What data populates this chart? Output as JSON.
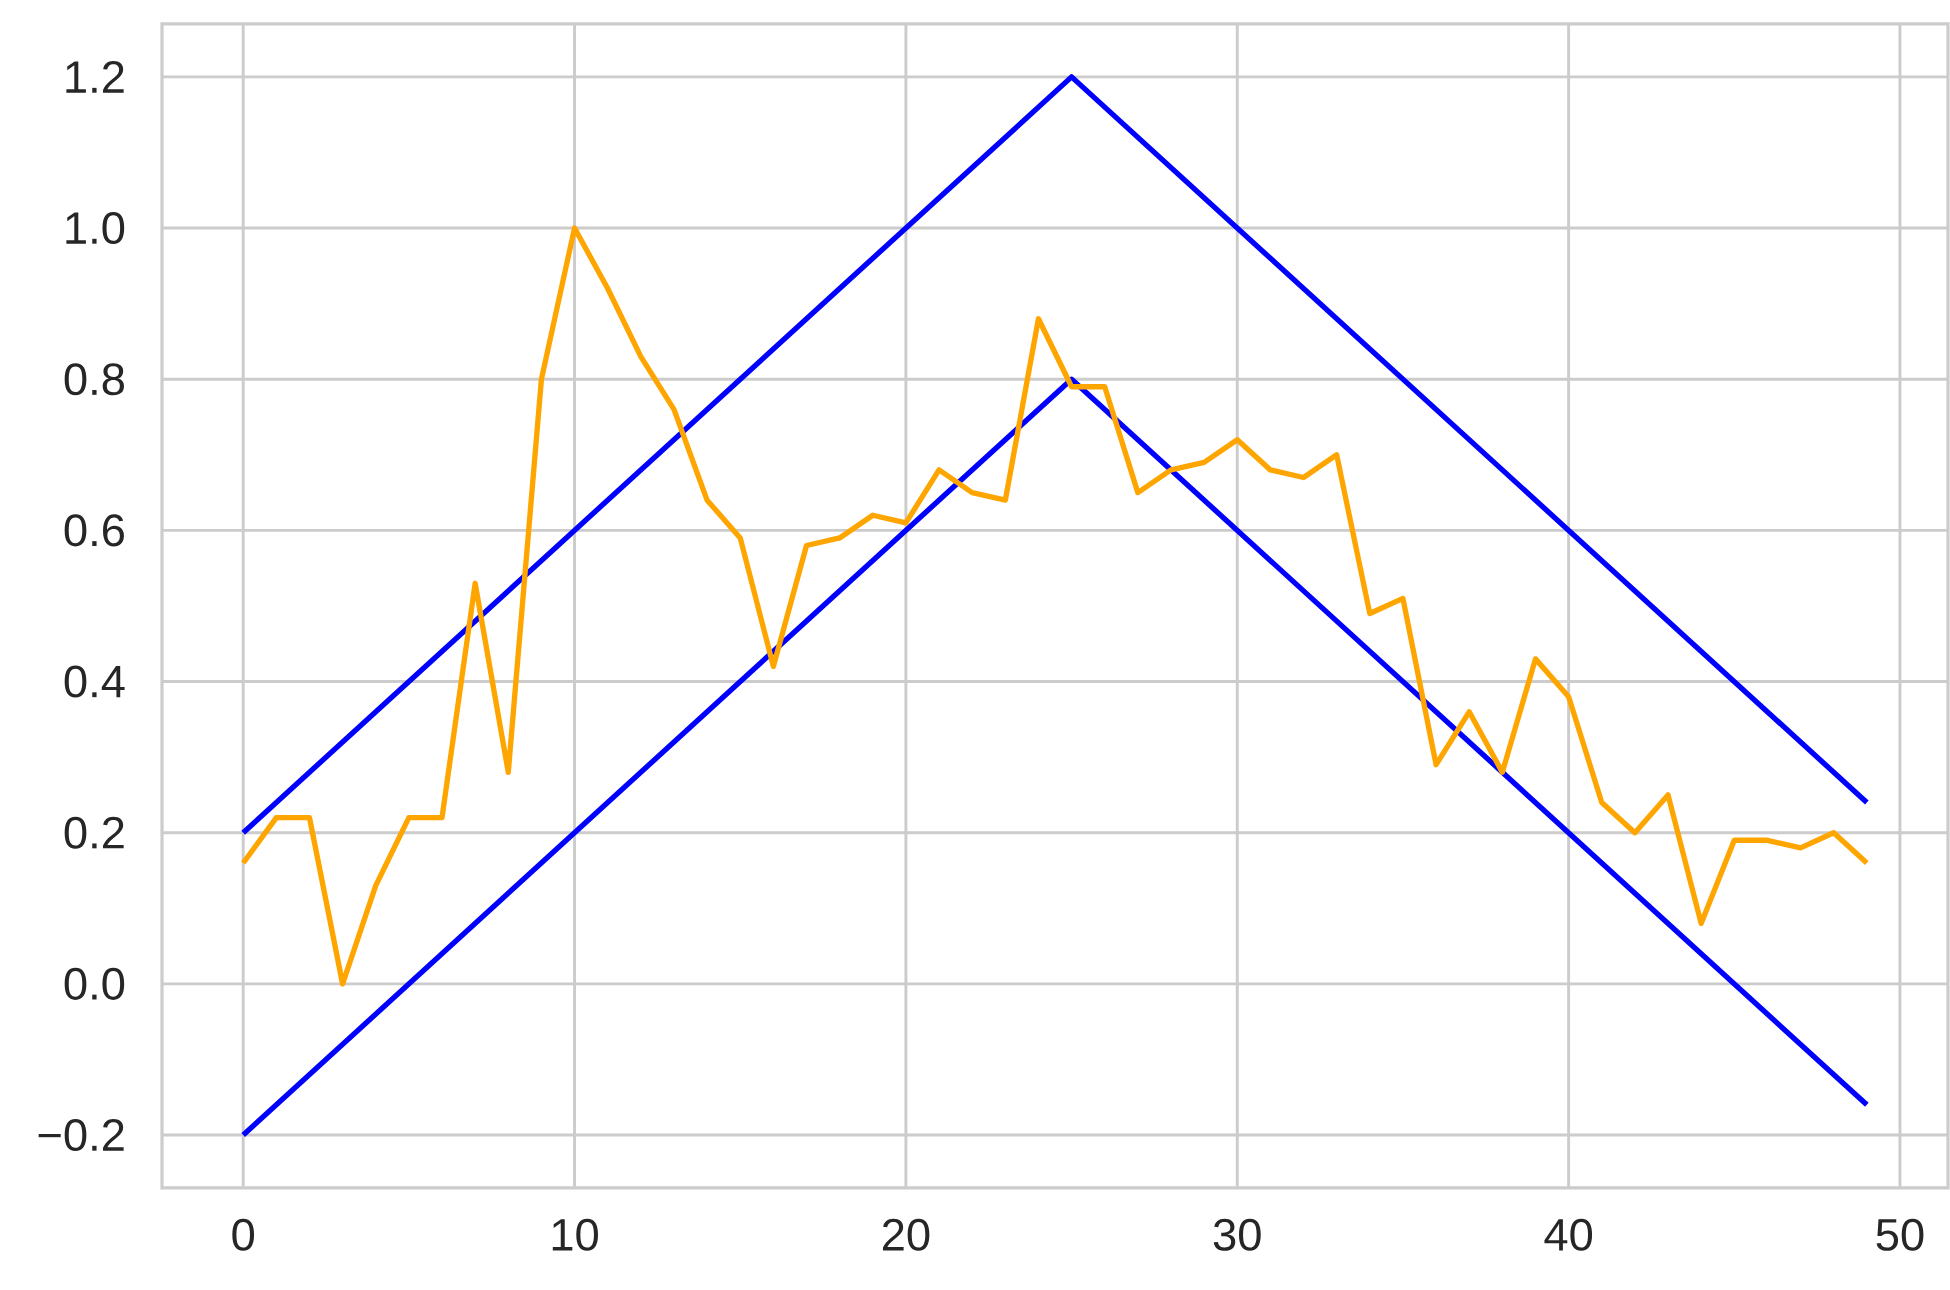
{
  "chart_data": {
    "type": "line",
    "x": [
      0,
      1,
      2,
      3,
      4,
      5,
      6,
      7,
      8,
      9,
      10,
      11,
      12,
      13,
      14,
      15,
      16,
      17,
      18,
      19,
      20,
      21,
      22,
      23,
      24,
      25,
      26,
      27,
      28,
      29,
      30,
      31,
      32,
      33,
      34,
      35,
      36,
      37,
      38,
      39,
      40,
      41,
      42,
      43,
      44,
      45,
      46,
      47,
      48,
      49
    ],
    "series": [
      {
        "color": "#0000ff",
        "x": [
          0,
          25,
          49
        ],
        "values": [
          0.2,
          1.2,
          0.24
        ]
      },
      {
        "color": "#0000ff",
        "x": [
          0,
          25,
          49
        ],
        "values": [
          -0.2,
          0.8,
          -0.16
        ]
      },
      {
        "color": "#ffa500",
        "values": [
          0.16,
          0.22,
          0.22,
          0.0,
          0.13,
          0.22,
          0.22,
          0.53,
          0.28,
          0.8,
          1.0,
          0.92,
          0.83,
          0.76,
          0.64,
          0.59,
          0.42,
          0.58,
          0.59,
          0.62,
          0.61,
          0.68,
          0.65,
          0.64,
          0.88,
          0.79,
          0.79,
          0.65,
          0.68,
          0.69,
          0.72,
          0.68,
          0.67,
          0.7,
          0.49,
          0.51,
          0.29,
          0.36,
          0.28,
          0.43,
          0.38,
          0.24,
          0.2,
          0.25,
          0.08,
          0.19,
          0.19,
          0.18,
          0.2,
          0.16
        ]
      }
    ],
    "xlim": [
      -2.45,
      51.45
    ],
    "ylim": [
      -0.27,
      1.27
    ],
    "xticks": [
      0,
      10,
      20,
      30,
      40,
      50
    ],
    "yticks": [
      {
        "value": -0.2,
        "label": "−0.2"
      },
      {
        "value": 0,
        "label": "0.0"
      },
      0.2,
      0.4,
      0.6,
      0.8,
      {
        "value": 1,
        "label": "1.0"
      },
      1.2
    ],
    "grid": true
  }
}
